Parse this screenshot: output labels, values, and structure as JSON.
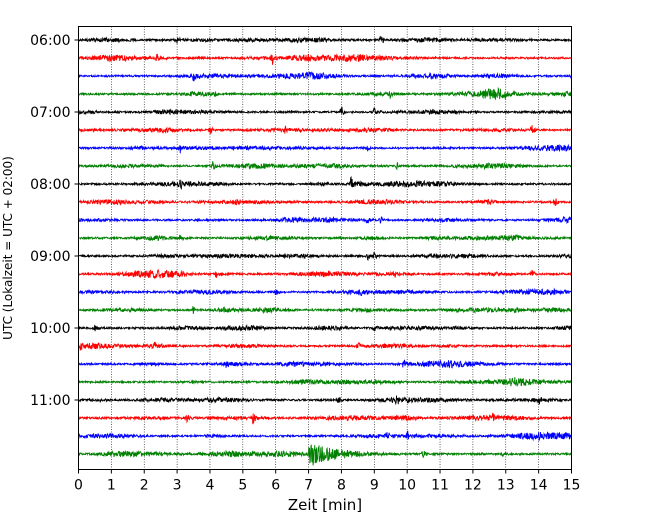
{
  "chart_data": {
    "type": "line",
    "title": "",
    "xlabel": "Zeit  [min]",
    "ylabel": "UTC (Lokalzeit = UTC + 02:00)",
    "xlim": [
      0,
      15
    ],
    "x_ticks": [
      0,
      1,
      2,
      3,
      4,
      5,
      6,
      7,
      8,
      9,
      10,
      11,
      12,
      13,
      14,
      15
    ],
    "y_tick_labels": [
      "06:00",
      "07:00",
      "08:00",
      "09:00",
      "10:00",
      "11:00"
    ],
    "grid": "vertical dotted lines at each minute",
    "trace_interval_minutes": 15,
    "trace_colors": [
      "#000000",
      "#ff0000",
      "#0000ff",
      "#008000"
    ],
    "traces": [
      {
        "start": "06:00",
        "color": "#000000",
        "events": [
          {
            "t": 3.0,
            "amp": 0.4
          },
          {
            "t": 9.2,
            "amp": 0.6
          }
        ]
      },
      {
        "start": "06:15",
        "color": "#ff0000",
        "events": [
          {
            "t": 2.4,
            "amp": 0.5
          },
          {
            "t": 5.9,
            "amp": 0.7
          }
        ]
      },
      {
        "start": "06:30",
        "color": "#0000ff",
        "events": [
          {
            "t": 3.5,
            "amp": 0.6
          },
          {
            "t": 15.0,
            "amp": 0.4
          }
        ]
      },
      {
        "start": "06:45",
        "color": "#008000",
        "events": [
          {
            "t": 4.1,
            "amp": 0.6
          },
          {
            "t": 9.5,
            "amp": 0.6
          }
        ]
      },
      {
        "start": "07:00",
        "color": "#000000",
        "events": [
          {
            "t": 8.0,
            "amp": 0.8
          },
          {
            "t": 9.0,
            "amp": 0.4
          }
        ]
      },
      {
        "start": "07:15",
        "color": "#ff0000",
        "events": [
          {
            "t": 4.0,
            "amp": 0.6
          },
          {
            "t": 6.3,
            "amp": 0.4
          },
          {
            "t": 13.8,
            "amp": 0.8
          }
        ]
      },
      {
        "start": "07:30",
        "color": "#0000ff",
        "events": [
          {
            "t": 3.1,
            "amp": 0.5
          },
          {
            "t": 8.8,
            "amp": 0.4
          }
        ]
      },
      {
        "start": "07:45",
        "color": "#008000",
        "events": [
          {
            "t": 4.1,
            "amp": 0.6
          },
          {
            "t": 9.7,
            "amp": 0.5
          },
          {
            "t": 13.0,
            "amp": 0.5
          }
        ]
      },
      {
        "start": "08:00",
        "color": "#000000",
        "events": [
          {
            "t": 3.1,
            "amp": 0.5
          },
          {
            "t": 8.3,
            "amp": 0.9
          },
          {
            "t": 9.4,
            "amp": 0.4
          }
        ]
      },
      {
        "start": "08:15",
        "color": "#ff0000",
        "events": [
          {
            "t": 4.8,
            "amp": 0.6
          },
          {
            "t": 14.5,
            "amp": 0.7
          }
        ]
      },
      {
        "start": "08:30",
        "color": "#0000ff",
        "events": [
          {
            "t": 8.8,
            "amp": 0.6
          },
          {
            "t": 9.2,
            "amp": 0.4
          }
        ]
      },
      {
        "start": "08:45",
        "color": "#008000",
        "events": [
          {
            "t": 3.1,
            "amp": 0.4
          },
          {
            "t": 13.3,
            "amp": 0.6
          }
        ]
      },
      {
        "start": "09:00",
        "color": "#000000",
        "events": [
          {
            "t": 8.8,
            "amp": 0.5
          },
          {
            "t": 9.0,
            "amp": 0.5
          }
        ]
      },
      {
        "start": "09:15",
        "color": "#ff0000",
        "events": [
          {
            "t": 3.2,
            "amp": 0.5
          },
          {
            "t": 4.2,
            "amp": 0.5
          },
          {
            "t": 9.6,
            "amp": 0.5
          },
          {
            "t": 13.8,
            "amp": 0.5
          }
        ]
      },
      {
        "start": "09:30",
        "color": "#0000ff",
        "events": [
          {
            "t": 6.0,
            "amp": 0.5
          },
          {
            "t": 8.6,
            "amp": 0.6
          }
        ]
      },
      {
        "start": "09:45",
        "color": "#008000",
        "events": [
          {
            "t": 3.5,
            "amp": 0.5
          },
          {
            "t": 8.8,
            "amp": 0.5
          },
          {
            "t": 13.3,
            "amp": 0.5
          }
        ]
      },
      {
        "start": "10:00",
        "color": "#000000",
        "events": [
          {
            "t": 0.5,
            "amp": 0.7
          },
          {
            "t": 9.0,
            "amp": 0.4
          },
          {
            "t": 15.0,
            "amp": 0.4
          }
        ]
      },
      {
        "start": "10:15",
        "color": "#ff0000",
        "events": [
          {
            "t": 0.1,
            "amp": 0.7
          },
          {
            "t": 2.3,
            "amp": 0.4
          },
          {
            "t": 8.5,
            "amp": 0.4
          }
        ]
      },
      {
        "start": "10:30",
        "color": "#0000ff",
        "events": [
          {
            "t": 4.5,
            "amp": 0.4
          },
          {
            "t": 9.9,
            "amp": 0.6
          }
        ]
      },
      {
        "start": "10:45",
        "color": "#008000",
        "events": [
          {
            "t": 3.5,
            "amp": 0.4
          },
          {
            "t": 13.2,
            "amp": 0.6
          }
        ]
      },
      {
        "start": "11:00",
        "color": "#000000",
        "events": [
          {
            "t": 7.9,
            "amp": 0.6
          },
          {
            "t": 9.7,
            "amp": 0.6
          },
          {
            "t": 14.0,
            "amp": 0.5
          }
        ]
      },
      {
        "start": "11:15",
        "color": "#ff0000",
        "events": [
          {
            "t": 3.3,
            "amp": 0.5
          },
          {
            "t": 5.3,
            "amp": 0.7
          },
          {
            "t": 12.6,
            "amp": 0.5
          }
        ]
      },
      {
        "start": "11:30",
        "color": "#0000ff",
        "events": [
          {
            "t": 9.4,
            "amp": 0.5
          },
          {
            "t": 10.0,
            "amp": 0.6
          }
        ]
      },
      {
        "start": "11:45",
        "color": "#008000",
        "events": [
          {
            "t": 7.0,
            "amp": 2.3
          },
          {
            "t": 10.5,
            "amp": 0.5
          },
          {
            "t": 12.9,
            "amp": 0.4
          }
        ]
      }
    ]
  }
}
